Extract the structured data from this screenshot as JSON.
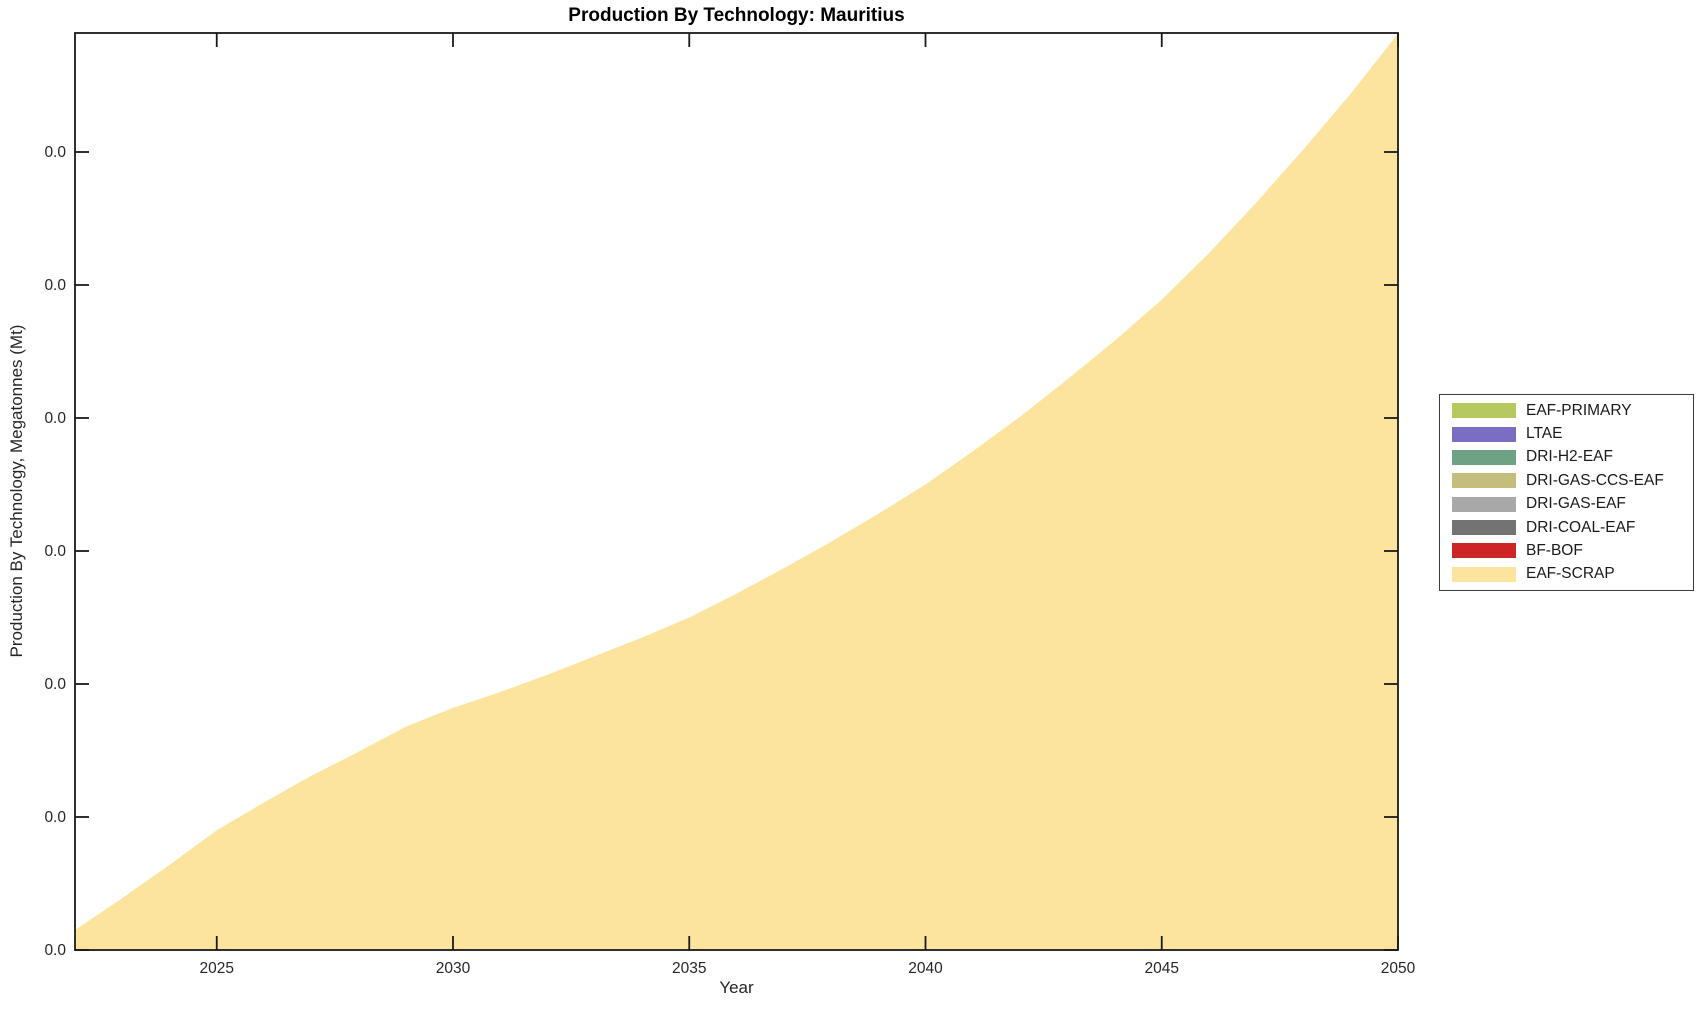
{
  "chart_data": {
    "type": "area",
    "stacked": true,
    "title": "Production By Technology: Mauritius",
    "xlabel": "Year",
    "ylabel": "Production By Technology, Megatonnes (Mt)",
    "grid": false,
    "legend_position": "right-outside",
    "xlim": [
      2022,
      2050
    ],
    "x_ticks": [
      2025,
      2030,
      2035,
      2040,
      2045,
      2050
    ],
    "y_tick_labels": [
      "0.0",
      "0.0",
      "0.0",
      "0.0",
      "0.0",
      "0.0",
      "0.0"
    ],
    "y_units": "gridline intervals (every y tick label displays 0.0)",
    "ylim_units": [
      0,
      6.89
    ],
    "x": [
      2022,
      2023,
      2024,
      2025,
      2026,
      2027,
      2028,
      2029,
      2030,
      2031,
      2032,
      2033,
      2034,
      2035,
      2036,
      2037,
      2038,
      2039,
      2040,
      2041,
      2042,
      2043,
      2044,
      2045,
      2046,
      2047,
      2048,
      2049,
      2050
    ],
    "series": [
      {
        "name": "EAF-PRIMARY",
        "color": "#B5C95E",
        "values": [
          0,
          0,
          0,
          0,
          0,
          0,
          0,
          0,
          0,
          0,
          0,
          0,
          0,
          0,
          0,
          0,
          0,
          0,
          0,
          0,
          0,
          0,
          0,
          0,
          0,
          0,
          0,
          0,
          0
        ]
      },
      {
        "name": "LTAE",
        "color": "#7A6EC3",
        "values": [
          0,
          0,
          0,
          0,
          0,
          0,
          0,
          0,
          0,
          0,
          0,
          0,
          0,
          0,
          0,
          0,
          0,
          0,
          0,
          0,
          0,
          0,
          0,
          0,
          0,
          0,
          0,
          0,
          0
        ]
      },
      {
        "name": "DRI-H2-EAF",
        "color": "#6FA184",
        "values": [
          0,
          0,
          0,
          0,
          0,
          0,
          0,
          0,
          0,
          0,
          0,
          0,
          0,
          0,
          0,
          0,
          0,
          0,
          0,
          0,
          0,
          0,
          0,
          0,
          0,
          0,
          0,
          0,
          0
        ]
      },
      {
        "name": "DRI-GAS-CCS-EAF",
        "color": "#C4BD7B",
        "values": [
          0,
          0,
          0,
          0,
          0,
          0,
          0,
          0,
          0,
          0,
          0,
          0,
          0,
          0,
          0,
          0,
          0,
          0,
          0,
          0,
          0,
          0,
          0,
          0,
          0,
          0,
          0,
          0,
          0
        ]
      },
      {
        "name": "DRI-GAS-EAF",
        "color": "#A8A8A8",
        "values": [
          0,
          0,
          0,
          0,
          0,
          0,
          0,
          0,
          0,
          0,
          0,
          0,
          0,
          0,
          0,
          0,
          0,
          0,
          0,
          0,
          0,
          0,
          0,
          0,
          0,
          0,
          0,
          0,
          0
        ]
      },
      {
        "name": "DRI-COAL-EAF",
        "color": "#737373",
        "values": [
          0,
          0,
          0,
          0,
          0,
          0,
          0,
          0,
          0,
          0,
          0,
          0,
          0,
          0,
          0,
          0,
          0,
          0,
          0,
          0,
          0,
          0,
          0,
          0,
          0,
          0,
          0,
          0,
          0
        ]
      },
      {
        "name": "BF-BOF",
        "color": "#CC2525",
        "values": [
          0,
          0,
          0,
          0,
          0,
          0,
          0,
          0,
          0,
          0,
          0,
          0,
          0,
          0,
          0,
          0,
          0,
          0,
          0,
          0,
          0,
          0,
          0,
          0,
          0,
          0,
          0,
          0,
          0
        ]
      },
      {
        "name": "EAF-SCRAP",
        "color": "#FDE49E",
        "values": [
          0.15,
          0.39,
          0.64,
          0.9,
          1.11,
          1.31,
          1.49,
          1.68,
          1.82,
          1.94,
          2.07,
          2.21,
          2.35,
          2.5,
          2.68,
          2.87,
          3.07,
          3.28,
          3.5,
          3.75,
          4.01,
          4.29,
          4.58,
          4.89,
          5.24,
          5.62,
          6.02,
          6.44,
          6.89
        ]
      }
    ]
  }
}
